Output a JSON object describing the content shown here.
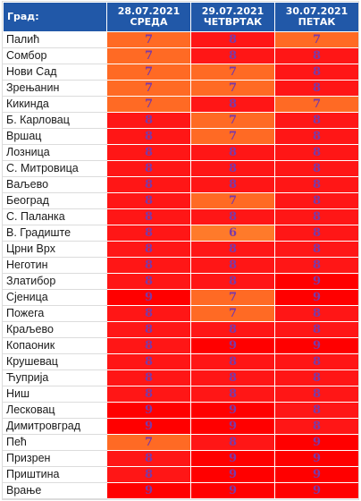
{
  "header": {
    "city_label": "Град:",
    "days": [
      {
        "date": "28.07.2021",
        "weekday": "СРЕДА"
      },
      {
        "date": "29.07.2021",
        "weekday": "ЧЕТВРТАК"
      },
      {
        "date": "30.07.2021",
        "weekday": "ПЕТАК"
      }
    ]
  },
  "colors": {
    "header_bg": "#2158a8",
    "level_7": "#ff6a24",
    "level_6": "#ff7a2a",
    "level_8": "#ff1616",
    "level_9": "#ff0000",
    "value_text": "#7a3aa8"
  },
  "rows": [
    {
      "city": "Палић",
      "values": [
        "7",
        "8",
        "7"
      ]
    },
    {
      "city": "Сомбор",
      "values": [
        "7",
        "8",
        "8"
      ]
    },
    {
      "city": "Нови Сад",
      "values": [
        "7",
        "7",
        "8"
      ]
    },
    {
      "city": "Зрењанин",
      "values": [
        "7",
        "7",
        "8"
      ]
    },
    {
      "city": "Кикинда",
      "values": [
        "7",
        "8",
        "7"
      ]
    },
    {
      "city": "Б. Карловац",
      "values": [
        "8",
        "7",
        "8"
      ]
    },
    {
      "city": "Вршац",
      "values": [
        "8",
        "7",
        "8"
      ]
    },
    {
      "city": "Лозница",
      "values": [
        "8",
        "8",
        "8"
      ]
    },
    {
      "city": "С. Митровица",
      "values": [
        "8",
        "8",
        "8"
      ]
    },
    {
      "city": "Ваљево",
      "values": [
        "8",
        "8",
        "8"
      ]
    },
    {
      "city": "Београд",
      "values": [
        "8",
        "7",
        "8"
      ]
    },
    {
      "city": "С. Паланка",
      "values": [
        "8",
        "8",
        "8"
      ]
    },
    {
      "city": "В. Градиште",
      "values": [
        "8",
        "6",
        "8"
      ]
    },
    {
      "city": "Црни Врх",
      "values": [
        "8",
        "8",
        "8"
      ]
    },
    {
      "city": "Неготин",
      "values": [
        "8",
        "8",
        "8"
      ]
    },
    {
      "city": "Златибор",
      "values": [
        "8",
        "8",
        "9"
      ]
    },
    {
      "city": "Сјеница",
      "values": [
        "9",
        "7",
        "9"
      ]
    },
    {
      "city": "Пожега",
      "values": [
        "8",
        "7",
        "8"
      ]
    },
    {
      "city": "Краљево",
      "values": [
        "8",
        "8",
        "8"
      ]
    },
    {
      "city": "Копаоник",
      "values": [
        "8",
        "9",
        "9"
      ]
    },
    {
      "city": "Крушевац",
      "values": [
        "8",
        "8",
        "8"
      ]
    },
    {
      "city": "Ћуприја",
      "values": [
        "8",
        "8",
        "8"
      ]
    },
    {
      "city": "Ниш",
      "values": [
        "8",
        "8",
        "8"
      ]
    },
    {
      "city": "Лесковац",
      "values": [
        "9",
        "9",
        "8"
      ]
    },
    {
      "city": "Димитровград",
      "values": [
        "9",
        "9",
        "8"
      ]
    },
    {
      "city": "Пећ",
      "values": [
        "7",
        "8",
        "9"
      ]
    },
    {
      "city": "Призрен",
      "values": [
        "8",
        "9",
        "9"
      ]
    },
    {
      "city": "Приштина",
      "values": [
        "8",
        "9",
        "9"
      ]
    },
    {
      "city": "Врање",
      "values": [
        "9",
        "9",
        "9"
      ]
    }
  ]
}
